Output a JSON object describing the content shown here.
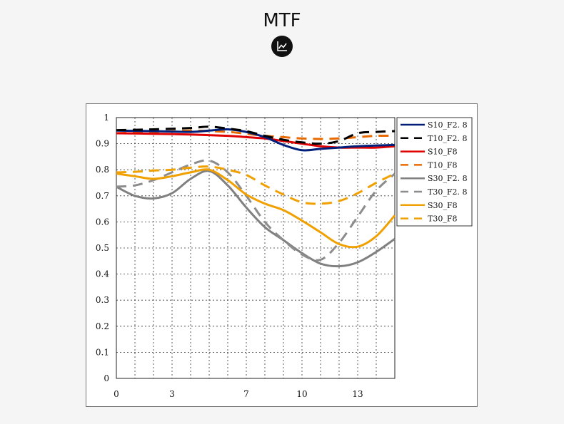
{
  "page": {
    "title": "MTF",
    "badge_icon": "line-chart-icon"
  },
  "chart_data": {
    "type": "line",
    "title": "",
    "xlabel": "",
    "ylabel": "",
    "xlim": [
      0,
      15
    ],
    "ylim": [
      0,
      1
    ],
    "x_ticks": [
      "0",
      "3",
      "7",
      "10",
      "13"
    ],
    "y_ticks": [
      "0",
      "0.1",
      "0.2",
      "0.3",
      "0.4",
      "0.5",
      "0.6",
      "0.7",
      "0.8",
      "0.9",
      "1"
    ],
    "grid": true,
    "legend_position": "right",
    "series": [
      {
        "name": "S10_F2. 8",
        "color": "#001f7a",
        "dash": "solid",
        "x": [
          0,
          2,
          4,
          5,
          6,
          7,
          8,
          9,
          10,
          11,
          12,
          13,
          15
        ],
        "y": [
          0.95,
          0.948,
          0.945,
          0.95,
          0.955,
          0.945,
          0.925,
          0.895,
          0.875,
          0.88,
          0.885,
          0.89,
          0.895
        ]
      },
      {
        "name": "T10_F2. 8",
        "color": "#000000",
        "dash": "dash",
        "x": [
          0,
          2,
          4,
          5,
          6,
          7,
          8,
          9,
          10,
          11,
          12,
          13,
          14,
          15
        ],
        "y": [
          0.952,
          0.955,
          0.96,
          0.965,
          0.958,
          0.948,
          0.93,
          0.915,
          0.905,
          0.9,
          0.91,
          0.94,
          0.945,
          0.948
        ]
      },
      {
        "name": "S10_F8",
        "color": "#e00000",
        "dash": "solid",
        "x": [
          0,
          2,
          4,
          6,
          7,
          8,
          9,
          10,
          11,
          12,
          13,
          14,
          15
        ],
        "y": [
          0.94,
          0.938,
          0.935,
          0.93,
          0.925,
          0.92,
          0.91,
          0.9,
          0.89,
          0.885,
          0.885,
          0.885,
          0.89
        ]
      },
      {
        "name": "T10_F8",
        "color": "#e86a00",
        "dash": "dash",
        "x": [
          0,
          2,
          4,
          6,
          7,
          8,
          9,
          10,
          11,
          12,
          13,
          14,
          15
        ],
        "y": [
          0.94,
          0.945,
          0.95,
          0.945,
          0.938,
          0.93,
          0.925,
          0.92,
          0.918,
          0.92,
          0.925,
          0.93,
          0.93
        ]
      },
      {
        "name": "S30_F2. 8",
        "color": "#808080",
        "dash": "solid",
        "x": [
          0,
          1,
          2,
          3,
          4,
          5,
          6,
          7,
          8,
          9,
          10,
          11,
          12,
          13,
          14,
          15
        ],
        "y": [
          0.735,
          0.7,
          0.69,
          0.71,
          0.765,
          0.795,
          0.74,
          0.655,
          0.58,
          0.53,
          0.48,
          0.44,
          0.43,
          0.445,
          0.485,
          0.535
        ]
      },
      {
        "name": "T30_F2. 8",
        "color": "#8c8c8c",
        "dash": "dash",
        "x": [
          0,
          1,
          2,
          3,
          4,
          5,
          6,
          7,
          8,
          9,
          10,
          11,
          12,
          13,
          14,
          15
        ],
        "y": [
          0.735,
          0.74,
          0.76,
          0.79,
          0.82,
          0.835,
          0.79,
          0.7,
          0.6,
          0.53,
          0.475,
          0.455,
          0.52,
          0.62,
          0.72,
          0.785
        ]
      },
      {
        "name": "S30_F8",
        "color": "#f0a000",
        "dash": "solid",
        "x": [
          0,
          1,
          2,
          3,
          4,
          5,
          6,
          7,
          8,
          9,
          10,
          11,
          12,
          13,
          14,
          15
        ],
        "y": [
          0.785,
          0.775,
          0.765,
          0.775,
          0.79,
          0.8,
          0.76,
          0.705,
          0.67,
          0.645,
          0.605,
          0.56,
          0.515,
          0.505,
          0.545,
          0.625
        ]
      },
      {
        "name": "T30_F8",
        "color": "#f0a000",
        "dash": "dash",
        "x": [
          0,
          1,
          2,
          3,
          4,
          5,
          6,
          7,
          8,
          9,
          10,
          11,
          12,
          13,
          14,
          15
        ],
        "y": [
          0.79,
          0.792,
          0.797,
          0.8,
          0.808,
          0.812,
          0.8,
          0.78,
          0.74,
          0.705,
          0.675,
          0.67,
          0.68,
          0.71,
          0.75,
          0.785
        ]
      }
    ]
  }
}
